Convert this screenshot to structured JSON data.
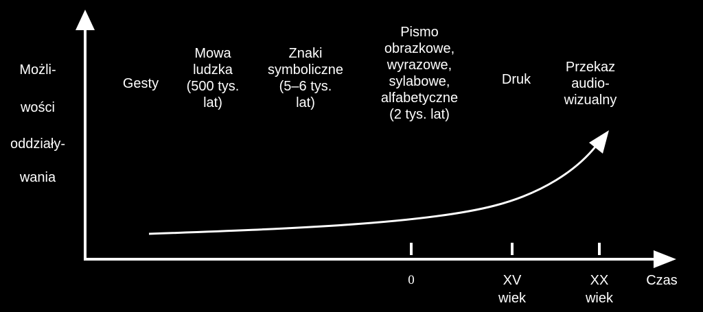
{
  "y_axis_label": [
    "Możli-",
    "wości",
    "oddziały-",
    "wania"
  ],
  "x_axis_label": "Czas",
  "stages": [
    {
      "id": "gesty",
      "text": "Gesty"
    },
    {
      "id": "mowa",
      "text": "Mowa\nludzka\n(500 tys.\nlat)"
    },
    {
      "id": "znaki",
      "text": "Znaki\nsymboliczne\n(5–6 tys.\nlat)"
    },
    {
      "id": "pismo",
      "text": "Pismo\nobrazkowe,\nwyrazowe,\nsylabowe,\nalfabetyczne\n(2 tys. lat)"
    },
    {
      "id": "druk",
      "text": "Druk"
    },
    {
      "id": "przekaz",
      "text": "Przekaz\naudio-\nwizualny"
    }
  ],
  "ticks": [
    {
      "id": "zero",
      "text": "0"
    },
    {
      "id": "xv",
      "text": "XV\nwiek"
    },
    {
      "id": "xx",
      "text": "XX\nwiek"
    }
  ],
  "colors": {
    "background": "#000000",
    "foreground": "#ffffff"
  }
}
